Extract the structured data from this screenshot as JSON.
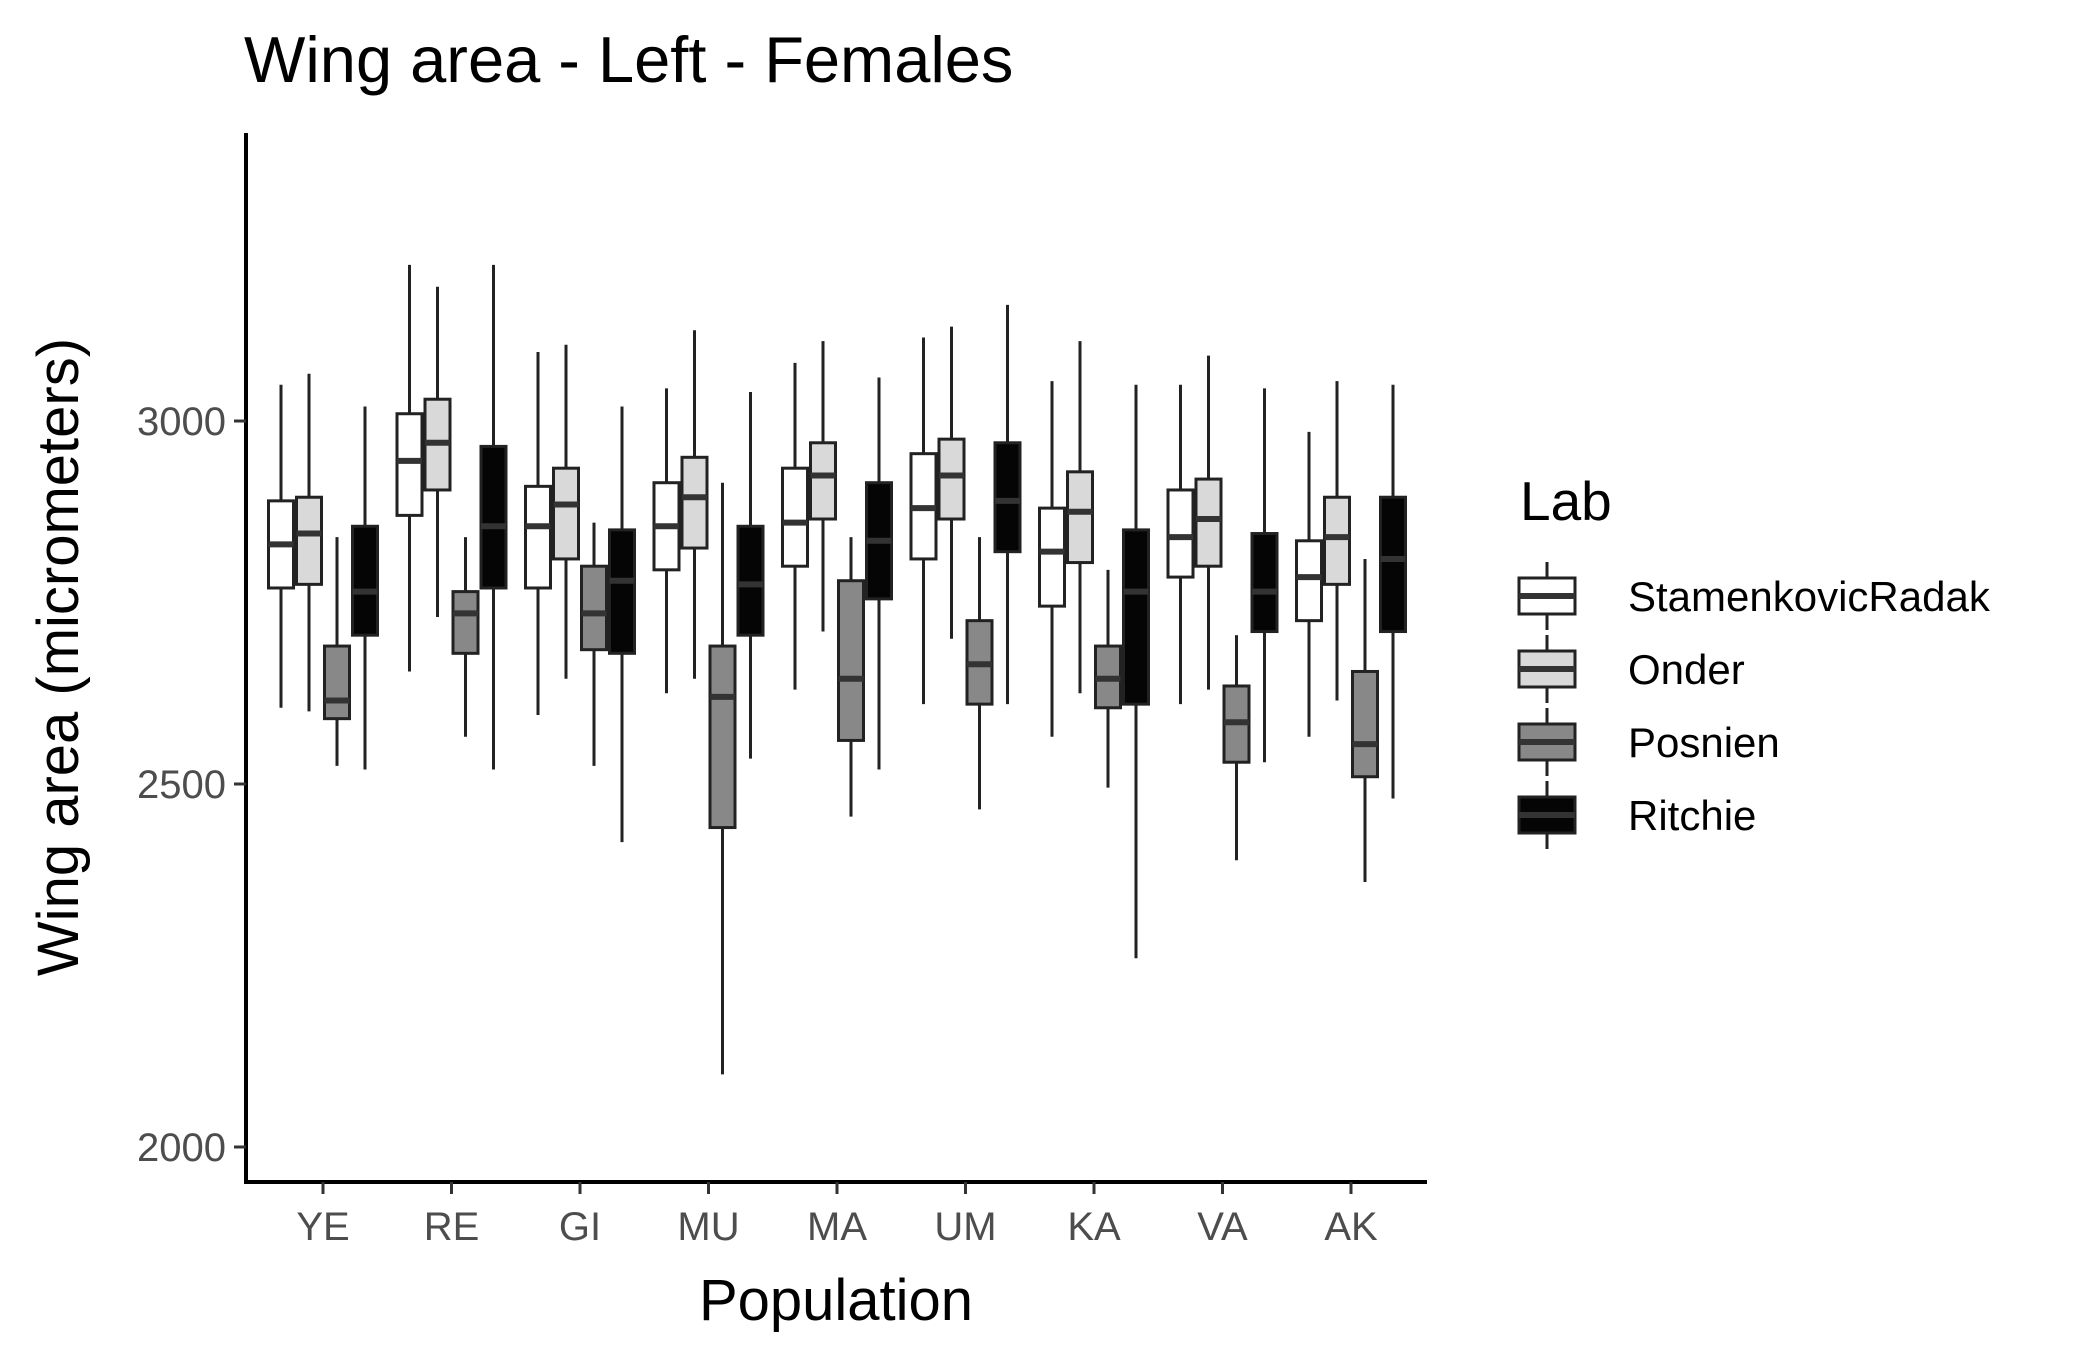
{
  "chart_data": {
    "type": "boxplot",
    "title": "Wing area - Left - Females",
    "xlabel": "Population",
    "ylabel": "Wing area (micrometers)",
    "ylim": [
      1950,
      3400
    ],
    "y_ticks": [
      2000,
      2500,
      3000
    ],
    "categories": [
      "YE",
      "RE",
      "GI",
      "MU",
      "MA",
      "UM",
      "KA",
      "VA",
      "AK"
    ],
    "legend": {
      "title": "Lab",
      "position": "right"
    },
    "grid": false,
    "series": [
      {
        "name": "StamenkovicRadak",
        "color": "#ffffff",
        "boxes": [
          {
            "min": 2605,
            "q1": 2770,
            "median": 2830,
            "q3": 2890,
            "max": 3050
          },
          {
            "min": 2655,
            "q1": 2870,
            "median": 2945,
            "q3": 3010,
            "max": 3215
          },
          {
            "min": 2595,
            "q1": 2770,
            "median": 2855,
            "q3": 2910,
            "max": 3095
          },
          {
            "min": 2625,
            "q1": 2795,
            "median": 2855,
            "q3": 2915,
            "max": 3045
          },
          {
            "min": 2630,
            "q1": 2800,
            "median": 2860,
            "q3": 2935,
            "max": 3080
          },
          {
            "min": 2610,
            "q1": 2810,
            "median": 2880,
            "q3": 2955,
            "max": 3115
          },
          {
            "min": 2565,
            "q1": 2745,
            "median": 2820,
            "q3": 2880,
            "max": 3055
          },
          {
            "min": 2610,
            "q1": 2785,
            "median": 2840,
            "q3": 2905,
            "max": 3050
          },
          {
            "min": 2565,
            "q1": 2725,
            "median": 2785,
            "q3": 2835,
            "max": 2985
          }
        ]
      },
      {
        "name": "Onder",
        "color": "#d9d9d9",
        "boxes": [
          {
            "min": 2600,
            "q1": 2775,
            "median": 2845,
            "q3": 2895,
            "max": 3065
          },
          {
            "min": 2730,
            "q1": 2905,
            "median": 2970,
            "q3": 3030,
            "max": 3185
          },
          {
            "min": 2645,
            "q1": 2810,
            "median": 2885,
            "q3": 2935,
            "max": 3105
          },
          {
            "min": 2645,
            "q1": 2825,
            "median": 2895,
            "q3": 2950,
            "max": 3125
          },
          {
            "min": 2710,
            "q1": 2865,
            "median": 2925,
            "q3": 2970,
            "max": 3110
          },
          {
            "min": 2700,
            "q1": 2865,
            "median": 2925,
            "q3": 2975,
            "max": 3130
          },
          {
            "min": 2625,
            "q1": 2805,
            "median": 2875,
            "q3": 2930,
            "max": 3110
          },
          {
            "min": 2630,
            "q1": 2800,
            "median": 2865,
            "q3": 2920,
            "max": 3090
          },
          {
            "min": 2615,
            "q1": 2775,
            "median": 2840,
            "q3": 2895,
            "max": 3055
          }
        ]
      },
      {
        "name": "Posnien",
        "color": "#888888",
        "boxes": [
          {
            "min": 2525,
            "q1": 2590,
            "median": 2615,
            "q3": 2690,
            "max": 2840
          },
          {
            "min": 2565,
            "q1": 2680,
            "median": 2735,
            "q3": 2765,
            "max": 2840
          },
          {
            "min": 2525,
            "q1": 2685,
            "median": 2735,
            "q3": 2800,
            "max": 2860
          },
          {
            "min": 2100,
            "q1": 2440,
            "median": 2620,
            "q3": 2690,
            "max": 2915
          },
          {
            "min": 2455,
            "q1": 2560,
            "median": 2645,
            "q3": 2780,
            "max": 2840
          },
          {
            "min": 2465,
            "q1": 2610,
            "median": 2665,
            "q3": 2725,
            "max": 2840
          },
          {
            "min": 2495,
            "q1": 2605,
            "median": 2645,
            "q3": 2690,
            "max": 2795
          },
          {
            "min": 2395,
            "q1": 2530,
            "median": 2585,
            "q3": 2635,
            "max": 2705
          },
          {
            "min": 2365,
            "q1": 2510,
            "median": 2555,
            "q3": 2655,
            "max": 2810
          }
        ]
      },
      {
        "name": "Ritchie",
        "color": "#050505",
        "boxes": [
          {
            "min": 2520,
            "q1": 2705,
            "median": 2765,
            "q3": 2855,
            "max": 3020
          },
          {
            "min": 2520,
            "q1": 2770,
            "median": 2855,
            "q3": 2965,
            "max": 3215
          },
          {
            "min": 2420,
            "q1": 2680,
            "median": 2780,
            "q3": 2850,
            "max": 3020
          },
          {
            "min": 2535,
            "q1": 2705,
            "median": 2775,
            "q3": 2855,
            "max": 3040
          },
          {
            "min": 2520,
            "q1": 2755,
            "median": 2835,
            "q3": 2915,
            "max": 3060
          },
          {
            "min": 2610,
            "q1": 2820,
            "median": 2890,
            "q3": 2970,
            "max": 3160
          },
          {
            "min": 2260,
            "q1": 2610,
            "median": 2765,
            "q3": 2850,
            "max": 3050
          },
          {
            "min": 2530,
            "q1": 2710,
            "median": 2765,
            "q3": 2845,
            "max": 3045
          },
          {
            "min": 2480,
            "q1": 2710,
            "median": 2810,
            "q3": 2895,
            "max": 3050
          }
        ]
      }
    ]
  }
}
